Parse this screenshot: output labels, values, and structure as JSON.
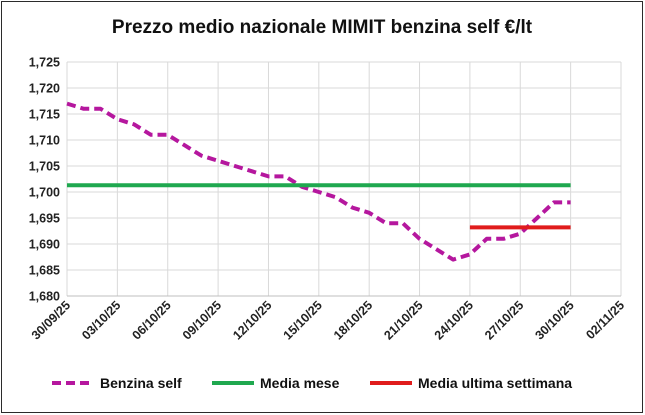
{
  "chart_data": {
    "type": "line",
    "title": "Prezzo medio nazionale MIMIT benzina self €/lt",
    "xlabel": "",
    "ylabel": "",
    "ylim": [
      1.68,
      1.725
    ],
    "y_ticks": [
      "1,680",
      "1,685",
      "1,690",
      "1,695",
      "1,700",
      "1,705",
      "1,710",
      "1,715",
      "1,720",
      "1,725"
    ],
    "x_ticks": [
      "30/09/25",
      "03/10/25",
      "06/10/25",
      "09/10/25",
      "12/10/25",
      "15/10/25",
      "18/10/25",
      "21/10/25",
      "24/10/25",
      "27/10/25",
      "30/10/25",
      "02/11/25"
    ],
    "x_range_days": [
      0,
      33
    ],
    "grid": true,
    "legend_position": "bottom",
    "series": [
      {
        "name": "Benzina self",
        "color": "#b5179e",
        "dash": "dashed",
        "x_dates": [
          "30/09/25",
          "01/10/25",
          "02/10/25",
          "03/10/25",
          "04/10/25",
          "05/10/25",
          "06/10/25",
          "07/10/25",
          "08/10/25",
          "09/10/25",
          "10/10/25",
          "11/10/25",
          "12/10/25",
          "13/10/25",
          "14/10/25",
          "15/10/25",
          "16/10/25",
          "17/10/25",
          "18/10/25",
          "19/10/25",
          "20/10/25",
          "21/10/25",
          "22/10/25",
          "23/10/25",
          "24/10/25",
          "25/10/25",
          "26/10/25",
          "27/10/25",
          "28/10/25",
          "29/10/25",
          "30/10/25"
        ],
        "values": [
          1.717,
          1.716,
          1.716,
          1.714,
          1.713,
          1.711,
          1.711,
          1.709,
          1.707,
          1.706,
          1.705,
          1.704,
          1.703,
          1.703,
          1.701,
          1.7,
          1.699,
          1.697,
          1.696,
          1.694,
          1.694,
          1.691,
          1.689,
          1.687,
          1.688,
          1.691,
          1.691,
          1.692,
          1.695,
          1.698,
          1.698
        ]
      },
      {
        "name": "Media mese",
        "color": "#1fa84f",
        "dash": "solid",
        "x_dates": [
          "30/09/25",
          "30/10/25"
        ],
        "values": [
          1.7013,
          1.7013
        ]
      },
      {
        "name": "Media ultima settimana",
        "color": "#e01c1c",
        "dash": "solid",
        "x_dates": [
          "24/10/25",
          "30/10/25"
        ],
        "values": [
          1.6932,
          1.6932
        ]
      }
    ]
  }
}
